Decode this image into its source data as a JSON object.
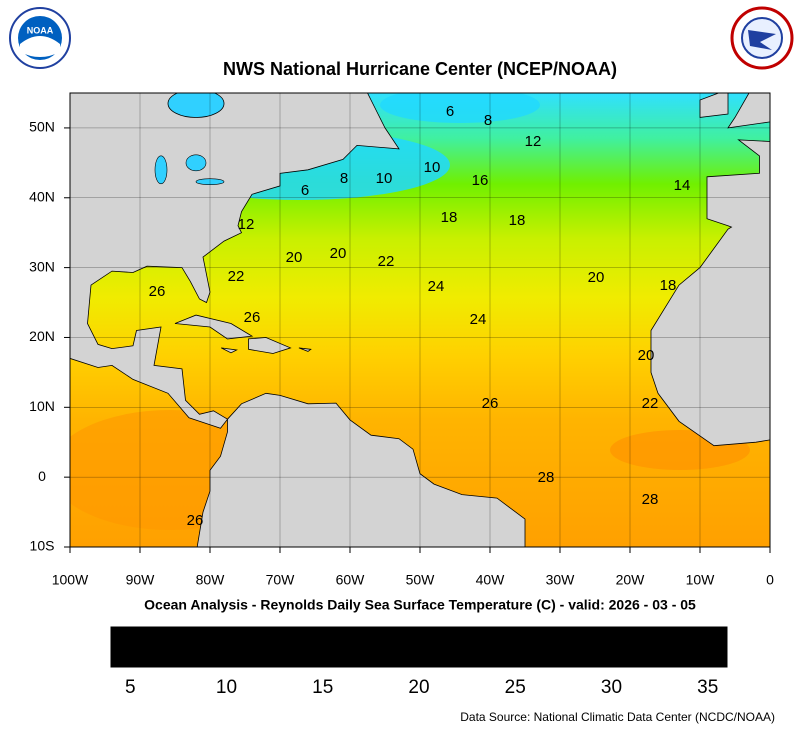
{
  "header": {
    "title": "NWS National Hurricane Center (NCEP/NOAA)"
  },
  "map": {
    "xlim": [
      -100,
      0
    ],
    "ylim": [
      -10,
      55
    ],
    "xticks": [
      {
        "value": -100,
        "label": "100W"
      },
      {
        "value": -90,
        "label": "90W"
      },
      {
        "value": -80,
        "label": "80W"
      },
      {
        "value": -70,
        "label": "70W"
      },
      {
        "value": -60,
        "label": "60W"
      },
      {
        "value": -50,
        "label": "50W"
      },
      {
        "value": -40,
        "label": "40W"
      },
      {
        "value": -30,
        "label": "30W"
      },
      {
        "value": -20,
        "label": "20W"
      },
      {
        "value": -10,
        "label": "10W"
      },
      0
    ],
    "yticks": [
      {
        "value": -10,
        "label": "10S"
      },
      0,
      {
        "value": 10,
        "label": "10N"
      },
      {
        "value": 20,
        "label": "20N"
      },
      {
        "value": 30,
        "label": "30N"
      },
      {
        "value": 40,
        "label": "40N"
      },
      {
        "value": 50,
        "label": "50N"
      }
    ],
    "contour_labels": [
      6,
      8,
      12,
      14,
      16,
      10,
      10,
      8,
      6,
      12,
      18,
      18,
      20,
      20,
      22,
      22,
      24,
      24,
      20,
      18,
      26,
      26,
      20,
      22,
      26,
      28,
      28,
      26
    ],
    "grid": true
  },
  "caption": "Ocean Analysis - Reynolds Daily Sea Surface Temperature (C) - valid: 2026 - 03 - 05",
  "colorbar": {
    "lim": [
      4,
      36
    ],
    "ticks": [
      5,
      10,
      15,
      20,
      25,
      30,
      35
    ]
  },
  "footer": "Data Source: National Climatic Data Center (NCDC/NOAA)"
}
